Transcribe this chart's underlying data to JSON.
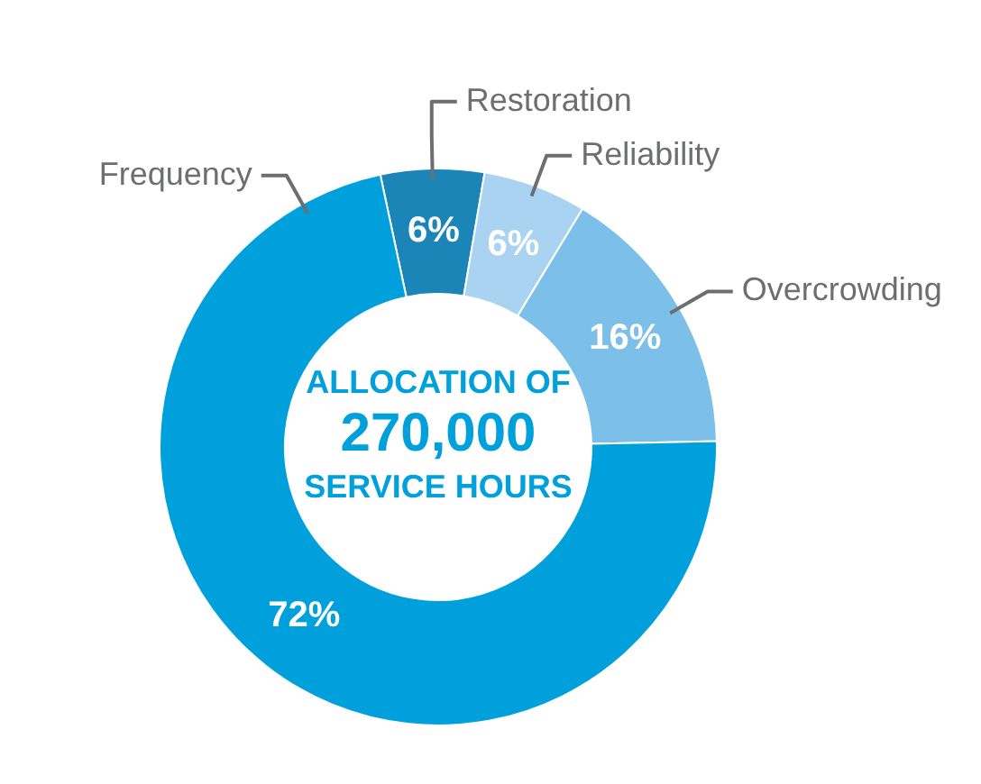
{
  "chart_data": {
    "type": "donut",
    "title": "ALLOCATION OF\n270,000\nSERVICE HOURS",
    "categories": [
      "Restoration",
      "Reliability",
      "Overcrowding",
      "Frequency"
    ],
    "values": [
      6,
      6,
      16,
      72
    ],
    "colors": [
      "#1b85b8",
      "#a9d3f1",
      "#7cc0ea",
      "#00a0dc"
    ],
    "value_labels": [
      "6%",
      "6%",
      "16%",
      "72%"
    ],
    "legend": false
  }
}
